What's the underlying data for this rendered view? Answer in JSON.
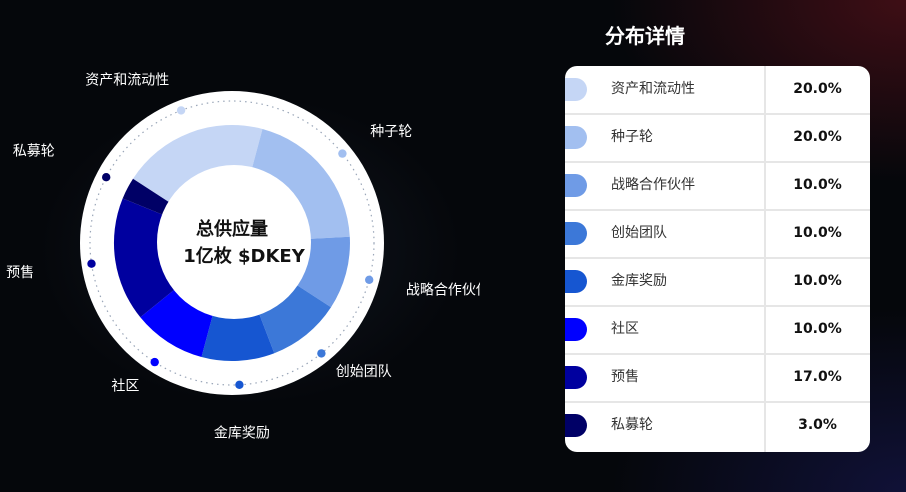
{
  "chart_data": {
    "type": "pie",
    "center_line1": "总供应量",
    "center_line2": "1亿枚 $DKEY",
    "categories": [
      "资产和流动性",
      "种子轮",
      "战略合作伙伴",
      "创始团队",
      "金库奖励",
      "社区",
      "预售",
      "私募轮"
    ],
    "values": [
      20.0,
      20.0,
      10.0,
      10.0,
      10.0,
      10.0,
      17.0,
      3.0
    ],
    "colors": [
      "#c5d6f5",
      "#a2bff0",
      "#6f9be6",
      "#3c78d8",
      "#1656d1",
      "#0000ff",
      "#00009f",
      "#000066"
    ]
  },
  "panel": {
    "title": "分布详情",
    "rows": [
      {
        "name": "资产和流动性",
        "pct": "20.0%"
      },
      {
        "name": "种子轮",
        "pct": "20.0%"
      },
      {
        "name": "战略合作伙伴",
        "pct": "10.0%"
      },
      {
        "name": "创始团队",
        "pct": "10.0%"
      },
      {
        "name": "金库奖励",
        "pct": "10.0%"
      },
      {
        "name": "社区",
        "pct": "10.0%"
      },
      {
        "name": "预售",
        "pct": "17.0%"
      },
      {
        "name": "私募轮",
        "pct": "3.0%"
      }
    ]
  }
}
